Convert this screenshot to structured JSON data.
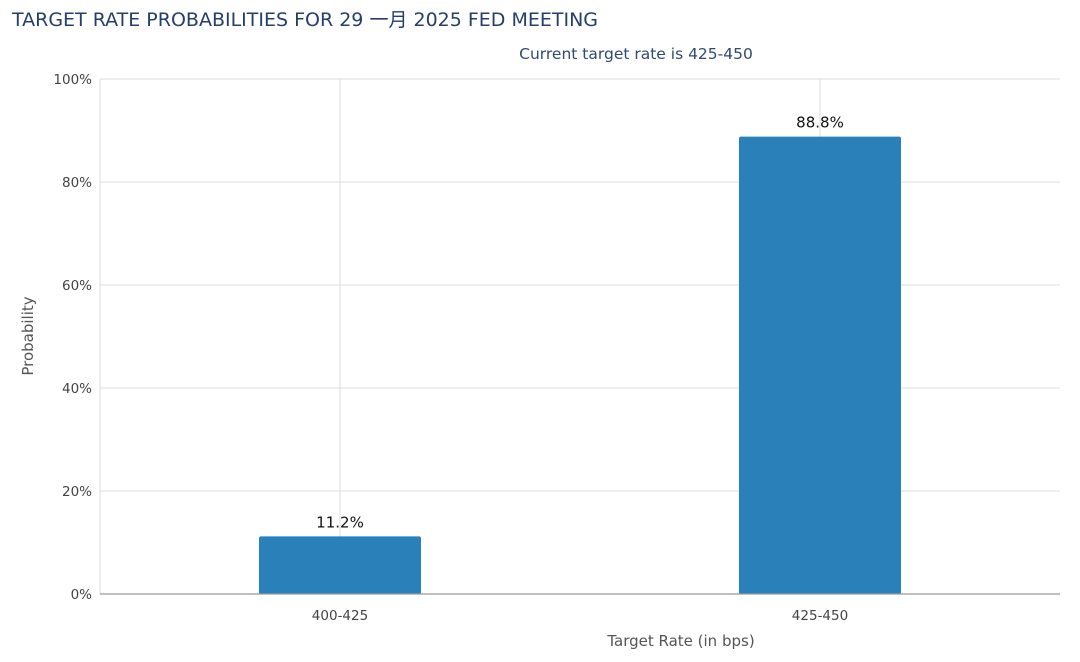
{
  "chart_data": {
    "type": "bar",
    "title": "TARGET RATE PROBABILITIES FOR 29 一月 2025 FED MEETING",
    "subtitle": "Current target rate is 425-450",
    "xlabel": "Target Rate (in bps)",
    "ylabel": "Probability",
    "categories": [
      "400-425",
      "425-450"
    ],
    "values": [
      11.2,
      88.8
    ],
    "data_labels": [
      "11.2%",
      "88.8%"
    ],
    "ylim": [
      0,
      100
    ],
    "yticks": [
      0,
      20,
      40,
      60,
      80,
      100
    ],
    "ytick_labels": [
      "0%",
      "20%",
      "40%",
      "60%",
      "80%",
      "100%"
    ],
    "grid": true,
    "bar_color": "#2a80b9"
  }
}
